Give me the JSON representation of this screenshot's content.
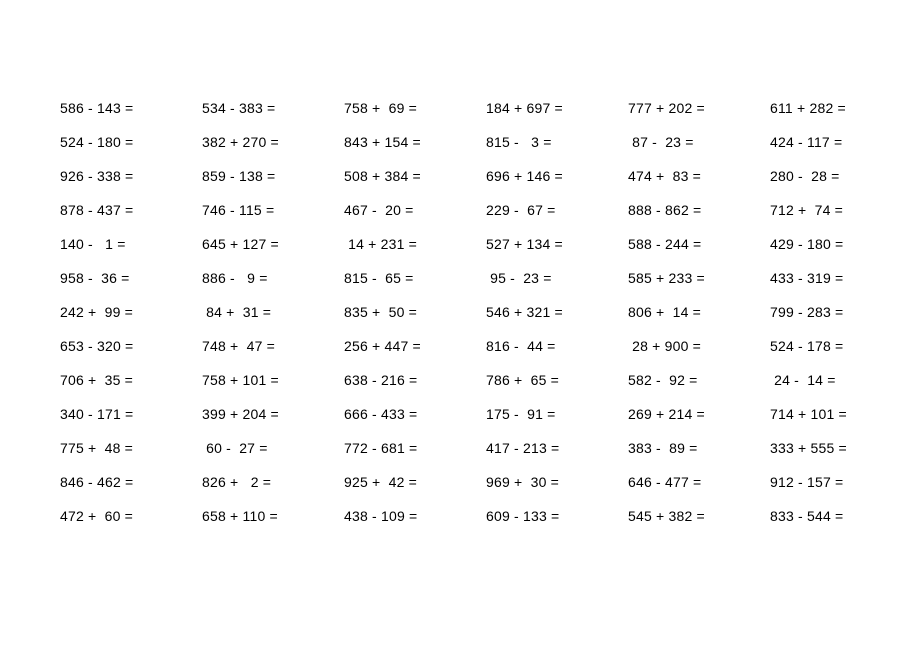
{
  "worksheet": {
    "type": "table",
    "columns": 6,
    "rows": 13,
    "background_color": "#ffffff",
    "text_color": "#000000",
    "font_size_pt": 11,
    "problems": [
      [
        {
          "a": 586,
          "op": "-",
          "b": 143
        },
        {
          "a": 534,
          "op": "-",
          "b": 383
        },
        {
          "a": 758,
          "op": "+",
          "b": 69
        },
        {
          "a": 184,
          "op": "+",
          "b": 697
        },
        {
          "a": 777,
          "op": "+",
          "b": 202
        },
        {
          "a": 611,
          "op": "+",
          "b": 282
        }
      ],
      [
        {
          "a": 524,
          "op": "-",
          "b": 180
        },
        {
          "a": 382,
          "op": "+",
          "b": 270
        },
        {
          "a": 843,
          "op": "+",
          "b": 154
        },
        {
          "a": 815,
          "op": "-",
          "b": 3
        },
        {
          "a": 87,
          "op": "-",
          "b": 23
        },
        {
          "a": 424,
          "op": "-",
          "b": 117
        }
      ],
      [
        {
          "a": 926,
          "op": "-",
          "b": 338
        },
        {
          "a": 859,
          "op": "-",
          "b": 138
        },
        {
          "a": 508,
          "op": "+",
          "b": 384
        },
        {
          "a": 696,
          "op": "+",
          "b": 146
        },
        {
          "a": 474,
          "op": "+",
          "b": 83
        },
        {
          "a": 280,
          "op": "-",
          "b": 28
        }
      ],
      [
        {
          "a": 878,
          "op": "-",
          "b": 437
        },
        {
          "a": 746,
          "op": "-",
          "b": 115
        },
        {
          "a": 467,
          "op": "-",
          "b": 20
        },
        {
          "a": 229,
          "op": "-",
          "b": 67
        },
        {
          "a": 888,
          "op": "-",
          "b": 862
        },
        {
          "a": 712,
          "op": "+",
          "b": 74
        }
      ],
      [
        {
          "a": 140,
          "op": "-",
          "b": 1
        },
        {
          "a": 645,
          "op": "+",
          "b": 127
        },
        {
          "a": 14,
          "op": "+",
          "b": 231
        },
        {
          "a": 527,
          "op": "+",
          "b": 134
        },
        {
          "a": 588,
          "op": "-",
          "b": 244
        },
        {
          "a": 429,
          "op": "-",
          "b": 180
        }
      ],
      [
        {
          "a": 958,
          "op": "-",
          "b": 36
        },
        {
          "a": 886,
          "op": "-",
          "b": 9
        },
        {
          "a": 815,
          "op": "-",
          "b": 65
        },
        {
          "a": 95,
          "op": "-",
          "b": 23
        },
        {
          "a": 585,
          "op": "+",
          "b": 233
        },
        {
          "a": 433,
          "op": "-",
          "b": 319
        }
      ],
      [
        {
          "a": 242,
          "op": "+",
          "b": 99
        },
        {
          "a": 84,
          "op": "+",
          "b": 31
        },
        {
          "a": 835,
          "op": "+",
          "b": 50
        },
        {
          "a": 546,
          "op": "+",
          "b": 321
        },
        {
          "a": 806,
          "op": "+",
          "b": 14
        },
        {
          "a": 799,
          "op": "-",
          "b": 283
        }
      ],
      [
        {
          "a": 653,
          "op": "-",
          "b": 320
        },
        {
          "a": 748,
          "op": "+",
          "b": 47
        },
        {
          "a": 256,
          "op": "+",
          "b": 447
        },
        {
          "a": 816,
          "op": "-",
          "b": 44
        },
        {
          "a": 28,
          "op": "+",
          "b": 900
        },
        {
          "a": 524,
          "op": "-",
          "b": 178
        }
      ],
      [
        {
          "a": 706,
          "op": "+",
          "b": 35
        },
        {
          "a": 758,
          "op": "+",
          "b": 101
        },
        {
          "a": 638,
          "op": "-",
          "b": 216
        },
        {
          "a": 786,
          "op": "+",
          "b": 65
        },
        {
          "a": 582,
          "op": "-",
          "b": 92
        },
        {
          "a": 24,
          "op": "-",
          "b": 14
        }
      ],
      [
        {
          "a": 340,
          "op": "-",
          "b": 171
        },
        {
          "a": 399,
          "op": "+",
          "b": 204
        },
        {
          "a": 666,
          "op": "-",
          "b": 433
        },
        {
          "a": 175,
          "op": "-",
          "b": 91
        },
        {
          "a": 269,
          "op": "+",
          "b": 214
        },
        {
          "a": 714,
          "op": "+",
          "b": 101
        }
      ],
      [
        {
          "a": 775,
          "op": "+",
          "b": 48
        },
        {
          "a": 60,
          "op": "-",
          "b": 27
        },
        {
          "a": 772,
          "op": "-",
          "b": 681
        },
        {
          "a": 417,
          "op": "-",
          "b": 213
        },
        {
          "a": 383,
          "op": "-",
          "b": 89
        },
        {
          "a": 333,
          "op": "+",
          "b": 555
        }
      ],
      [
        {
          "a": 846,
          "op": "-",
          "b": 462
        },
        {
          "a": 826,
          "op": "+",
          "b": 2
        },
        {
          "a": 925,
          "op": "+",
          "b": 42
        },
        {
          "a": 969,
          "op": "+",
          "b": 30
        },
        {
          "a": 646,
          "op": "-",
          "b": 477
        },
        {
          "a": 912,
          "op": "-",
          "b": 157
        }
      ],
      [
        {
          "a": 472,
          "op": "+",
          "b": 60
        },
        {
          "a": 658,
          "op": "+",
          "b": 110
        },
        {
          "a": 438,
          "op": "-",
          "b": 109
        },
        {
          "a": 609,
          "op": "-",
          "b": 133
        },
        {
          "a": 545,
          "op": "+",
          "b": 382
        },
        {
          "a": 833,
          "op": "-",
          "b": 544
        }
      ]
    ]
  }
}
